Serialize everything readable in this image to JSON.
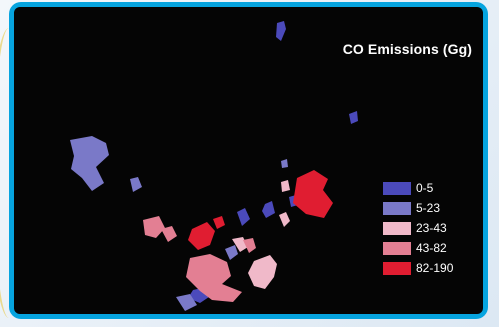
{
  "map": {
    "title": "CO Emissions (Gg)",
    "legend": [
      {
        "label": "0-5",
        "color": "#4b4abb"
      },
      {
        "label": "5-23",
        "color": "#7a79c8"
      },
      {
        "label": "23-43",
        "color": "#f0b9c9"
      },
      {
        "label": "43-82",
        "color": "#e37f93"
      },
      {
        "label": "82-190",
        "color": "#e01d31"
      }
    ]
  }
}
